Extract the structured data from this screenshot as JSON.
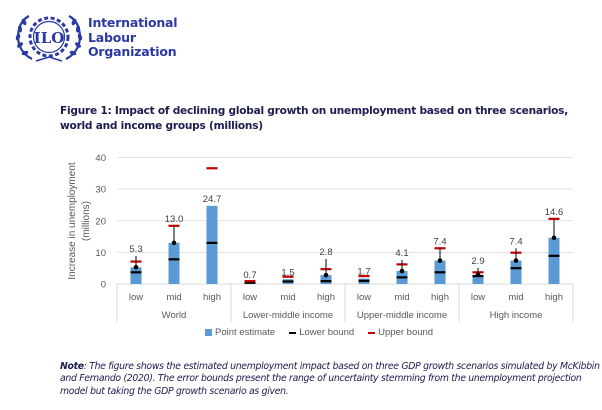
{
  "header": {
    "logo_text": "ILO",
    "org_name_lines": [
      "International",
      "Labour",
      "Organization"
    ]
  },
  "figure": {
    "title": "Figure 1: Impact of declining global growth on unemployment based on three scenarios, world and income groups (millions)"
  },
  "colors": {
    "point_estimate": "#5b9bd5",
    "lower_bound": "#000000",
    "upper_bound": "#c00000",
    "brand": "#2b3aa3"
  },
  "chart_data": {
    "type": "bar",
    "title": "Impact of declining global growth on unemployment based on three scenarios, world and income groups (millions)",
    "ylabel_lines": [
      "Increase in unemployment",
      "(millions)"
    ],
    "xlabel": "",
    "ylim": [
      0,
      40
    ],
    "yticks": [
      0,
      10,
      20,
      30,
      40
    ],
    "grid": true,
    "legend_position": "bottom",
    "legend": [
      "Point estimate",
      "Lower bound",
      "Upper bound"
    ],
    "groups": [
      "World",
      "Lower-middle income",
      "Upper-middle income",
      "High income"
    ],
    "scenarios": [
      "low",
      "mid",
      "high"
    ],
    "series": [
      {
        "name": "Point estimate",
        "kind": "bar",
        "values": [
          5.3,
          13.0,
          24.7,
          0.7,
          1.5,
          2.8,
          1.7,
          4.1,
          7.4,
          2.9,
          7.4,
          14.6
        ]
      },
      {
        "name": "Lower bound",
        "kind": "dash",
        "values": [
          3.7,
          7.8,
          13.0,
          0.4,
          0.8,
          0.9,
          1.0,
          2.1,
          3.7,
          2.5,
          5.0,
          8.9
        ]
      },
      {
        "name": "Upper bound",
        "kind": "dash",
        "values": [
          7.1,
          18.4,
          36.6,
          0.9,
          2.3,
          4.7,
          2.5,
          6.2,
          11.3,
          3.7,
          9.9,
          20.6
        ]
      },
      {
        "name": "Error bar top",
        "kind": "whisker",
        "values": [
          8.9,
          18.4,
          null,
          null,
          null,
          7.9,
          null,
          7.6,
          11.3,
          5.1,
          11.3,
          20.6
        ]
      }
    ],
    "data_labels": [
      "5.3",
      "13.0",
      "24.7",
      "0.7",
      "1.5",
      "2.8",
      "1.7",
      "4.1",
      "7.4",
      "2.9",
      "7.4",
      "14.6"
    ]
  },
  "note": {
    "label": "Note",
    "text": ": The figure shows the estimated unemployment impact based on three GDP growth scenarios simulated by McKibbin and Fernando (2020). The error bounds present the range of uncertainty stemming from the unemployment projection model but taking the GDP growth scenario as given."
  }
}
